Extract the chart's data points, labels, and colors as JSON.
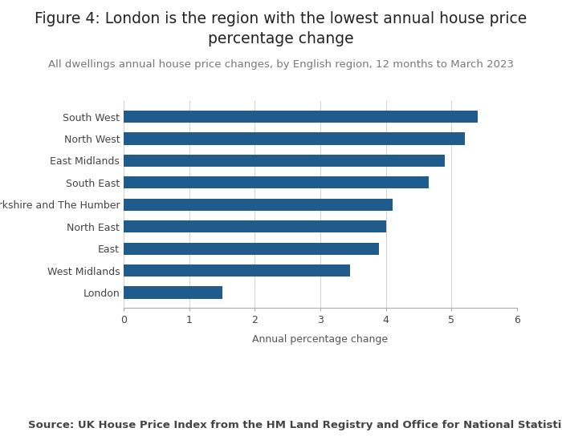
{
  "title": "Figure 4: London is the region with the lowest annual house price\npercentage change",
  "subtitle": "All dwellings annual house price changes, by English region, 12 months to March 2023",
  "source": "Source: UK House Price Index from the HM Land Registry and Office for National Statistics",
  "xlabel": "Annual percentage change",
  "categories": [
    "South West",
    "North West",
    "East Midlands",
    "South East",
    "Yorkshire and The Humber",
    "North East",
    "East",
    "West Midlands",
    "London"
  ],
  "values": [
    5.4,
    5.2,
    4.9,
    4.65,
    4.1,
    4.0,
    3.9,
    3.45,
    1.5
  ],
  "bar_color": "#1F5C8B",
  "xlim": [
    0,
    6
  ],
  "xticks": [
    0,
    1,
    2,
    3,
    4,
    5,
    6
  ],
  "title_fontsize": 13.5,
  "subtitle_fontsize": 9.5,
  "source_fontsize": 9.5,
  "xlabel_fontsize": 9,
  "tick_fontsize": 9,
  "bar_height": 0.55,
  "background_color": "#ffffff",
  "grid_color": "#d0d0d0",
  "label_color": "#555555",
  "title_color": "#222222"
}
